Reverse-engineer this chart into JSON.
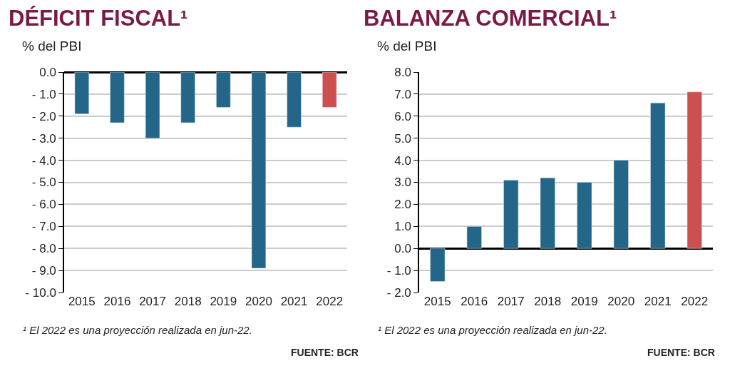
{
  "chart_data": [
    {
      "type": "bar",
      "title": "DÉFICIT FISCAL¹",
      "subtitle": "% del PBI",
      "categories": [
        "2015",
        "2016",
        "2017",
        "2018",
        "2019",
        "2020",
        "2021",
        "2022"
      ],
      "values": [
        -1.9,
        -2.3,
        -3.0,
        -2.3,
        -1.6,
        -8.9,
        -2.5,
        -1.6
      ],
      "colors": [
        "#236688",
        "#236688",
        "#236688",
        "#236688",
        "#236688",
        "#236688",
        "#236688",
        "#cd5051"
      ],
      "ylim": [
        -10,
        0
      ],
      "yticks": [
        {
          "value": 0,
          "label": "0.0"
        },
        {
          "value": -1,
          "label": "- 1.0"
        },
        {
          "value": -2,
          "label": "- 2.0"
        },
        {
          "value": -3,
          "label": "- 3.0"
        },
        {
          "value": -4,
          "label": "- 4.0"
        },
        {
          "value": -5,
          "label": "- 5.0"
        },
        {
          "value": -6,
          "label": "- 6.0"
        },
        {
          "value": -7,
          "label": "- 7.0"
        },
        {
          "value": -8,
          "label": "- 8.0"
        },
        {
          "value": -9,
          "label": "- 9.0"
        },
        {
          "value": -10,
          "label": "- 10.0"
        }
      ],
      "grid": "y",
      "legend": false,
      "annotations": [
        "¹ El 2022 es una proyección realizada en jun-22.",
        "FUENTE: BCR"
      ]
    },
    {
      "type": "bar",
      "title": "BALANZA COMERCIAL¹",
      "subtitle": "% del PBI",
      "categories": [
        "2015",
        "2016",
        "2017",
        "2018",
        "2019",
        "2020",
        "2021",
        "2022"
      ],
      "values": [
        -1.5,
        1.0,
        3.1,
        3.2,
        3.0,
        4.0,
        6.6,
        7.1
      ],
      "colors": [
        "#236688",
        "#236688",
        "#236688",
        "#236688",
        "#236688",
        "#236688",
        "#236688",
        "#cd5051"
      ],
      "ylim": [
        -2,
        8
      ],
      "yticks": [
        {
          "value": 8,
          "label": "8.0"
        },
        {
          "value": 7,
          "label": "7.0"
        },
        {
          "value": 6,
          "label": "6.0"
        },
        {
          "value": 5,
          "label": "5.0"
        },
        {
          "value": 4,
          "label": "4.0"
        },
        {
          "value": 3,
          "label": "3.0"
        },
        {
          "value": 2,
          "label": "2.0"
        },
        {
          "value": 1,
          "label": "1.0"
        },
        {
          "value": 0,
          "label": "0.0"
        },
        {
          "value": -1,
          "label": "- 1.0"
        },
        {
          "value": -2,
          "label": "- 2.0"
        }
      ],
      "grid": "y",
      "legend": false,
      "annotations": [
        "¹ El 2022 es una proyección realizada en jun-22.",
        "FUENTE: BCR"
      ]
    }
  ]
}
